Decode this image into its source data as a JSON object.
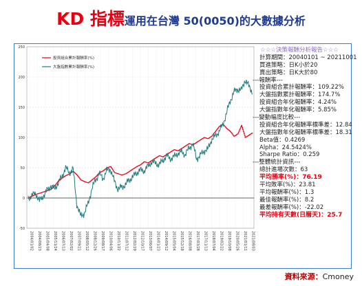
{
  "title": {
    "main": "KD 指標",
    "sub": "運用在台灣 50(0050)的大數據分析"
  },
  "source": {
    "label": "資料來源：",
    "name": "Cmoney"
  },
  "panel": {
    "header": "☆☆☆決策報酬分析報告☆☆☆",
    "rows": [
      {
        "type": "item",
        "text": "計算期間：20040101 ~ 20211001"
      },
      {
        "type": "item",
        "text": "買進策略：日K小於20"
      },
      {
        "type": "item",
        "text": "賣出策略：日K大於80"
      },
      {
        "type": "sec",
        "text": "---報酬率---"
      },
      {
        "type": "item",
        "text": "投資組合累計報酬率：109.22%"
      },
      {
        "type": "item",
        "text": "大盤指數累計報酬率：174.7%"
      },
      {
        "type": "item",
        "text": "投資組合年化報酬率：4.24%"
      },
      {
        "type": "item",
        "text": "大盤指數年化報酬率：5.85%"
      },
      {
        "type": "sec",
        "text": "---變動幅度比較---"
      },
      {
        "type": "item",
        "text": "投資組合年化報酬率標準差：12.84"
      },
      {
        "type": "item",
        "text": "大盤指數年化報酬率標準差：18.31"
      },
      {
        "type": "item",
        "text": "Beta值：0.4269"
      },
      {
        "type": "item",
        "text": "Alpha：24.5424%"
      },
      {
        "type": "item",
        "text": "Sharpe Ratio：0.259"
      },
      {
        "type": "sec",
        "text": "---整體統計資訊---"
      },
      {
        "type": "item",
        "text": "總計進場次數：63"
      },
      {
        "type": "hl",
        "text": "平均勝率(%)：76.19"
      },
      {
        "type": "item",
        "text": "平均敗率(%)：23.81"
      },
      {
        "type": "item",
        "text": "平均報酬率(%)：1.3"
      },
      {
        "type": "item",
        "text": "最佳報酬率(%)：8.2"
      },
      {
        "type": "item",
        "text": "最差報酬率(%)：-22.02"
      },
      {
        "type": "hl",
        "text": "平均持有天數(日曆天)：25.7"
      }
    ]
  },
  "chart_data": {
    "type": "line",
    "ylim": [
      -50,
      250
    ],
    "yticks": [
      -50,
      0,
      50,
      100,
      150,
      200,
      250
    ],
    "xtick_labels": [
      "2004/01/02",
      "2004/08/23",
      "2005/04/08",
      "2005/11/24",
      "2006/07/13",
      "2007/02/02",
      "2007/09/21",
      "2008/05/12",
      "2008/12/26",
      "2009/08/17",
      "2010/04/06",
      "2010/11/22",
      "2011/07/12",
      "2012/02/29",
      "2012/10/17",
      "2013/06/07",
      "2014/01/23",
      "2014/09/12",
      "2015/05/04",
      "2015/12/18",
      "2016/08/08",
      "2017/03/28",
      "2017/11/13",
      "2018/07/04",
      "2019/02/22",
      "2019/10/08",
      "2020/05/26",
      "2021/01/11",
      "2021/08/03"
    ],
    "colors": {
      "portfolio": "#e60012",
      "index": "#1f7a7a"
    },
    "series": [
      {
        "name": "投資組合累計報酬率(%)",
        "key": "portfolio",
        "values": [
          0,
          3,
          6,
          8,
          10,
          12,
          14,
          20,
          28,
          33,
          37,
          40,
          44,
          38,
          30,
          27,
          25,
          30,
          35,
          42,
          45,
          50,
          52,
          42,
          40,
          38,
          40,
          44,
          48,
          52,
          55,
          60,
          58,
          62,
          66,
          70,
          68,
          72,
          76,
          80,
          78,
          82,
          86,
          90,
          88,
          92,
          96,
          100,
          98,
          102,
          110,
          118,
          122,
          115,
          110,
          102,
          106,
          120,
          100,
          104,
          108
        ]
      },
      {
        "name": "大盤指數累計報酬率(%)",
        "key": "index",
        "values": [
          0,
          4,
          8,
          -5,
          3,
          12,
          20,
          15,
          25,
          35,
          50,
          42,
          48,
          -10,
          -30,
          -25,
          -10,
          15,
          30,
          40,
          32,
          45,
          48,
          28,
          15,
          18,
          22,
          30,
          35,
          42,
          46,
          45,
          52,
          60,
          58,
          55,
          62,
          70,
          65,
          68,
          74,
          76,
          72,
          82,
          90,
          65,
          70,
          78,
          80,
          96,
          102,
          110,
          120,
          140,
          160,
          175,
          180,
          178,
          195,
          185,
          175
        ]
      }
    ]
  }
}
